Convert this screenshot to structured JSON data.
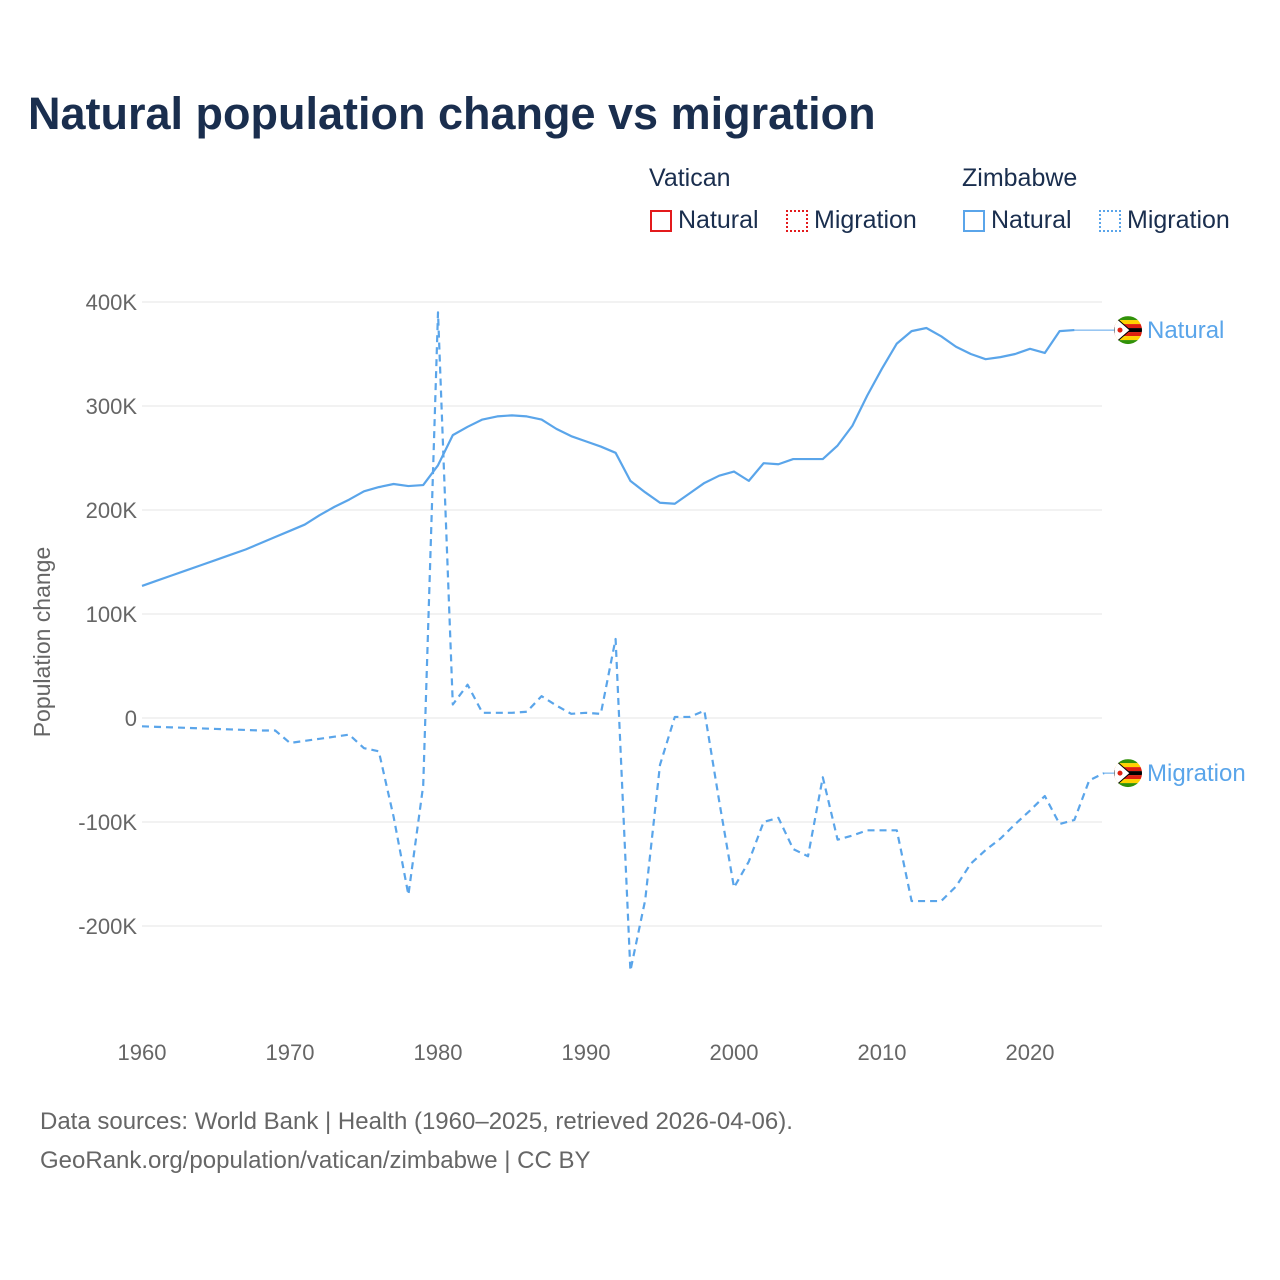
{
  "chart_data": {
    "type": "line",
    "title": "Natural population change vs migration",
    "ylabel": "Population change",
    "xlabel": "",
    "xlim": [
      1960,
      2025
    ],
    "ylim": [
      -250000,
      400000
    ],
    "x_ticks": [
      "1960",
      "1970",
      "1980",
      "1990",
      "2000",
      "2010",
      "2020"
    ],
    "y_ticks": [
      {
        "v": 400000,
        "label": "400K"
      },
      {
        "v": 300000,
        "label": "300K"
      },
      {
        "v": 200000,
        "label": "200K"
      },
      {
        "v": 100000,
        "label": "100K"
      },
      {
        "v": 0,
        "label": "0"
      },
      {
        "v": -100000,
        "label": "-100K"
      },
      {
        "v": -200000,
        "label": "-200K"
      }
    ],
    "grid": true,
    "legend": {
      "groups": [
        {
          "name": "Vatican",
          "items": [
            {
              "label": "Natural",
              "style": "solid",
              "color": "#e31a1c"
            },
            {
              "label": "Migration",
              "style": "dotted",
              "color": "#e31a1c"
            }
          ]
        },
        {
          "name": "Zimbabwe",
          "items": [
            {
              "label": "Natural",
              "style": "solid",
              "color": "#5aa5ea"
            },
            {
              "label": "Migration",
              "style": "dotted",
              "color": "#5aa5ea"
            }
          ]
        }
      ],
      "placement": "top-right"
    },
    "series": [
      {
        "name": "Zimbabwe Natural",
        "end_label": "Natural",
        "color": "#5aa5ea",
        "dash": "solid",
        "x": [
          1960,
          1961,
          1962,
          1963,
          1964,
          1965,
          1966,
          1967,
          1968,
          1969,
          1970,
          1971,
          1972,
          1973,
          1974,
          1975,
          1976,
          1977,
          1978,
          1979,
          1980,
          1981,
          1982,
          1983,
          1984,
          1985,
          1986,
          1987,
          1988,
          1989,
          1990,
          1991,
          1992,
          1993,
          1994,
          1995,
          1996,
          1997,
          1998,
          1999,
          2000,
          2001,
          2002,
          2003,
          2004,
          2005,
          2006,
          2007,
          2008,
          2009,
          2010,
          2011,
          2012,
          2013,
          2014,
          2015,
          2016,
          2017,
          2018,
          2019,
          2020,
          2021,
          2022,
          2023
        ],
        "y": [
          127000,
          132000,
          137000,
          142000,
          147000,
          152000,
          157000,
          162000,
          168000,
          174000,
          180000,
          186000,
          195000,
          203000,
          210000,
          218000,
          222000,
          225000,
          223000,
          224000,
          243000,
          272000,
          280000,
          287000,
          290000,
          291000,
          290000,
          287000,
          278000,
          271000,
          266000,
          261000,
          255000,
          228000,
          217000,
          207000,
          206000,
          216000,
          226000,
          233000,
          237000,
          228000,
          245000,
          244000,
          249000,
          249000,
          249000,
          262000,
          281000,
          310000,
          336000,
          360000,
          372000,
          375000,
          367000,
          357000,
          350000,
          345000,
          347000,
          350000,
          355000,
          351000,
          372000,
          373000
        ]
      },
      {
        "name": "Zimbabwe Migration",
        "end_label": "Migration",
        "color": "#5aa5ea",
        "dash": "dashed",
        "x": [
          1960,
          1961,
          1962,
          1963,
          1964,
          1965,
          1966,
          1967,
          1968,
          1969,
          1970,
          1971,
          1972,
          1973,
          1974,
          1975,
          1976,
          1977,
          1978,
          1979,
          1980,
          1981,
          1982,
          1983,
          1984,
          1985,
          1986,
          1987,
          1988,
          1989,
          1990,
          1991,
          1992,
          1993,
          1994,
          1995,
          1996,
          1997,
          1998,
          1999,
          2000,
          2001,
          2002,
          2003,
          2004,
          2005,
          2006,
          2007,
          2008,
          2009,
          2010,
          2011,
          2012,
          2013,
          2014,
          2015,
          2016,
          2017,
          2018,
          2019,
          2020,
          2021,
          2022,
          2023,
          2024,
          2025
        ],
        "y": [
          -8000,
          -8500,
          -9000,
          -9500,
          -10000,
          -10500,
          -11000,
          -11500,
          -12000,
          -12000,
          -24000,
          -22000,
          -20000,
          -18000,
          -16000,
          -29000,
          -32000,
          -95000,
          -170000,
          -65000,
          390000,
          13000,
          32000,
          5000,
          5000,
          5000,
          6000,
          21000,
          12000,
          4000,
          5000,
          4000,
          76000,
          -243000,
          -175000,
          -45000,
          1000,
          1000,
          7000,
          -80000,
          -163000,
          -138000,
          -100000,
          -96000,
          -126000,
          -133000,
          -57000,
          -117000,
          -113000,
          -108000,
          -108000,
          -108000,
          -176000,
          -176000,
          -176000,
          -162000,
          -140000,
          -127000,
          -116000,
          -102000,
          -89000,
          -75000,
          -102000,
          -98000,
          -60000,
          -53000
        ]
      }
    ]
  },
  "footer": {
    "line1": "Data sources: World Bank | Health (1960–2025, retrieved 2026-04-06).",
    "line2": "GeoRank.org/population/vatican/zimbabwe | CC BY"
  }
}
